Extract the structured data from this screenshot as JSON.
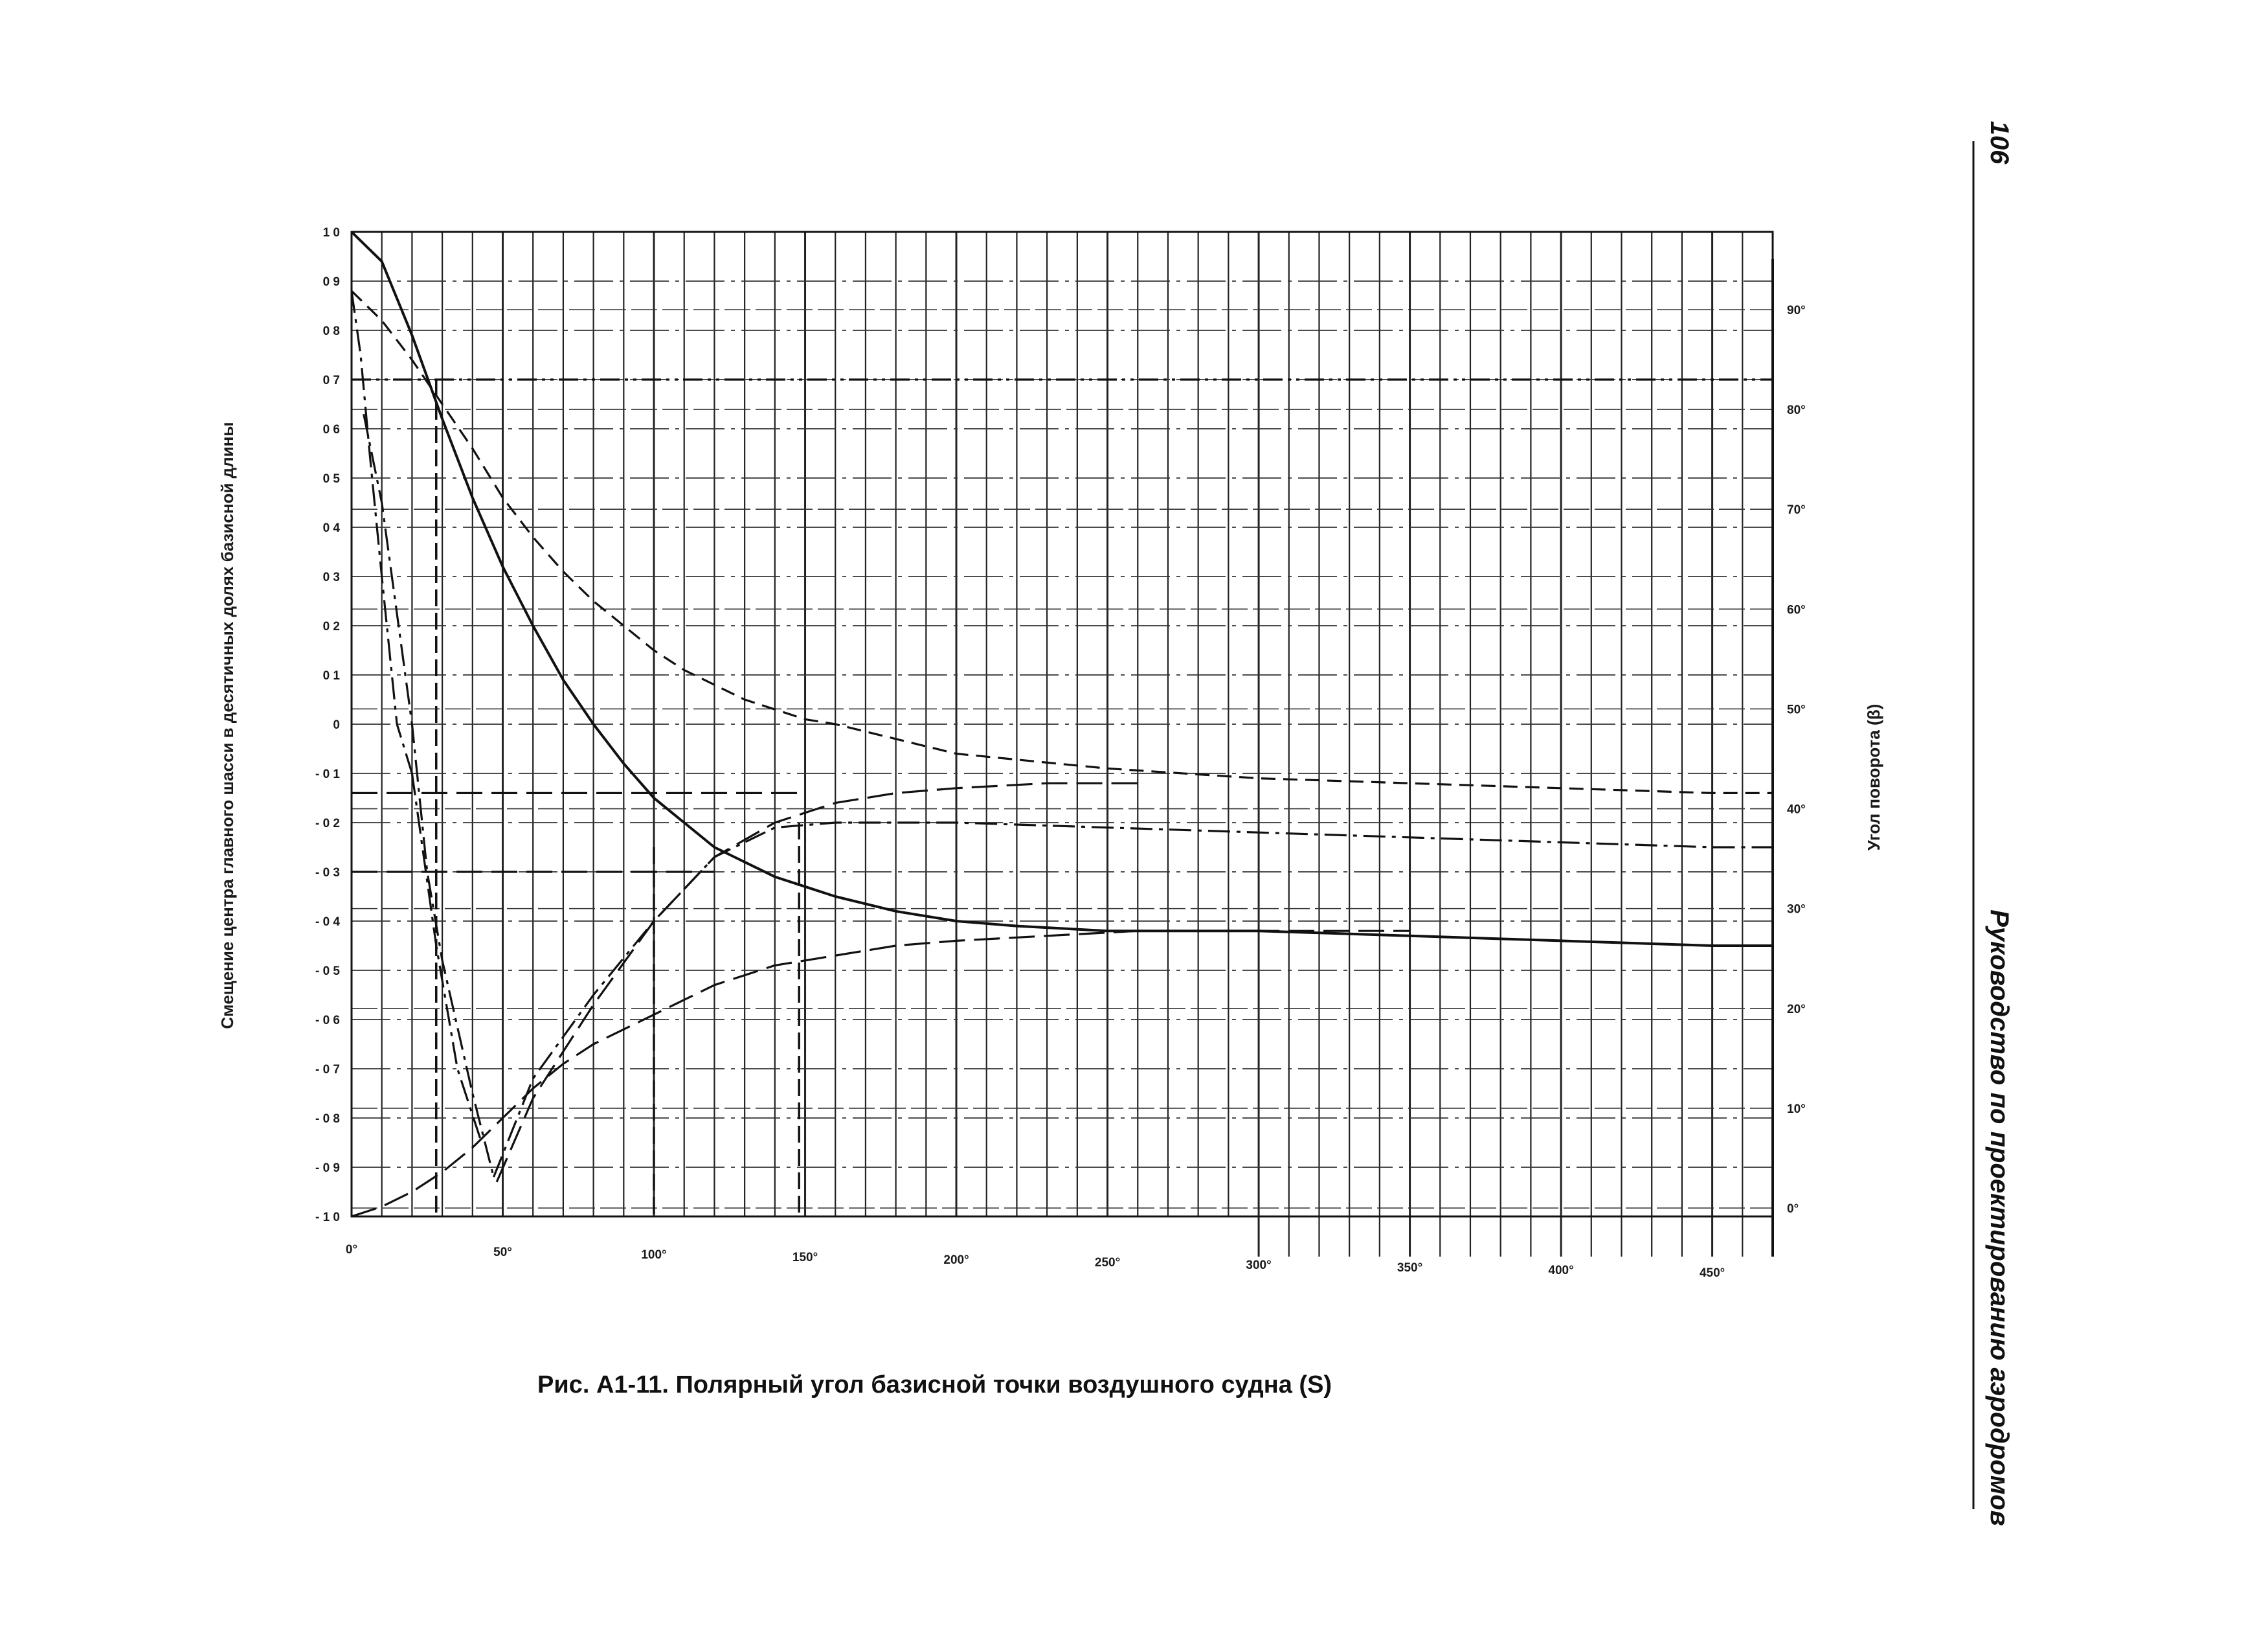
{
  "page": {
    "number": "106",
    "running_title": "Руководство по проектированию аэродромов"
  },
  "figure": {
    "caption": "Рис. А1-11. Полярный угол базисной точки воздушного судна (S)"
  },
  "chart_data": {
    "type": "line",
    "grid": true,
    "xlabel": "",
    "xlim": [
      0,
      470
    ],
    "x_ticks": [
      0,
      50,
      100,
      150,
      200,
      250,
      300,
      350,
      400,
      450
    ],
    "x_tick_labels": [
      "0°",
      "50°",
      "100°",
      "150°",
      "200°",
      "250°",
      "300°",
      "350°",
      "400°",
      "450°"
    ],
    "ylabel_left": "Смещение центра главного шасси в десятичных долях базисной длины",
    "ylim_left": [
      -1.0,
      1.0
    ],
    "y_ticks_left": [
      1.0,
      0.9,
      0.8,
      0.7,
      0.6,
      0.5,
      0.4,
      0.3,
      0.2,
      0.1,
      0,
      -0.1,
      -0.2,
      -0.3,
      -0.4,
      -0.5,
      -0.6,
      -0.7,
      -0.8,
      -0.9,
      -1.0
    ],
    "y_tick_labels_left": [
      "1 0",
      "0 9",
      "0 8",
      "0 7",
      "0 6",
      "0 5",
      "0 4",
      "0 3",
      "0 2",
      "0 1",
      "0",
      "- 0 1",
      "- 0 2",
      "- 0 3",
      "- 0 4",
      "- 0 5",
      "- 0 6",
      "- 0 7",
      "- 0 8",
      "- 0 9",
      "- 1 0"
    ],
    "ylabel_right": "Угол поворота (β)",
    "ylim_right": [
      -5,
      95
    ],
    "y_ticks_right": [
      0,
      10,
      20,
      30,
      40,
      50,
      60,
      70,
      80,
      90
    ],
    "y_tick_labels_right": [
      "0°",
      "10°",
      "20°",
      "30°",
      "40°",
      "50°",
      "60°",
      "70°",
      "80°",
      "90°"
    ],
    "series": [
      {
        "style": "solid",
        "color": "#111111",
        "x": [
          0,
          10,
          20,
          30,
          40,
          50,
          60,
          70,
          80,
          90,
          100,
          110,
          120,
          130,
          140,
          150,
          160,
          180,
          200,
          220,
          250,
          280,
          300,
          350,
          400,
          450,
          470
        ],
        "y": [
          1.0,
          0.94,
          0.79,
          0.62,
          0.46,
          0.32,
          0.2,
          0.09,
          0.0,
          -0.08,
          -0.15,
          -0.2,
          -0.25,
          -0.28,
          -0.31,
          -0.33,
          -0.35,
          -0.38,
          -0.4,
          -0.41,
          -0.42,
          -0.42,
          -0.42,
          -0.43,
          -0.44,
          -0.45,
          -0.45
        ]
      },
      {
        "style": "dashed",
        "color": "#111111",
        "x": [
          0,
          10,
          20,
          30,
          40,
          50,
          60,
          70,
          80,
          90,
          100,
          110,
          120,
          130,
          140,
          150,
          160,
          180,
          200,
          250,
          300,
          350,
          400,
          450,
          470
        ],
        "y": [
          0.88,
          0.82,
          0.74,
          0.65,
          0.56,
          0.46,
          0.38,
          0.31,
          0.25,
          0.2,
          0.15,
          0.11,
          0.08,
          0.05,
          0.03,
          0.01,
          0.0,
          -0.03,
          -0.06,
          -0.09,
          -0.11,
          -0.12,
          -0.13,
          -0.14,
          -0.14
        ]
      },
      {
        "style": "long-dash",
        "color": "#111111",
        "x": [
          0,
          10,
          20,
          30,
          40,
          50,
          60,
          70,
          80,
          90,
          100,
          110,
          120,
          130,
          140,
          150,
          180,
          200,
          230,
          260,
          300,
          350
        ],
        "y": [
          -1.0,
          -0.98,
          -0.95,
          -0.91,
          -0.86,
          -0.8,
          -0.74,
          -0.69,
          -0.65,
          -0.62,
          -0.59,
          -0.56,
          -0.53,
          -0.51,
          -0.49,
          -0.48,
          -0.45,
          -0.44,
          -0.43,
          -0.42,
          -0.42,
          -0.42
        ]
      },
      {
        "style": "dash-dot",
        "color": "#111111",
        "x": [
          4,
          10,
          20,
          25,
          30,
          40,
          47
        ],
        "y": [
          0.63,
          0.45,
          0.0,
          -0.3,
          -0.48,
          -0.75,
          -0.92
        ]
      },
      {
        "style": "dash-dot",
        "color": "#111111",
        "x": [
          47,
          60,
          80,
          100,
          120,
          140,
          160,
          200,
          250,
          300,
          350,
          400,
          450,
          470
        ],
        "y": [
          -0.92,
          -0.72,
          -0.55,
          -0.4,
          -0.27,
          -0.21,
          -0.2,
          -0.2,
          -0.21,
          -0.22,
          -0.23,
          -0.24,
          -0.25,
          -0.25
        ]
      },
      {
        "style": "dash-dot",
        "color": "#111111",
        "x": [
          0,
          3,
          6,
          10,
          15,
          20
        ],
        "y": [
          0.88,
          0.75,
          0.55,
          0.3,
          0.0,
          -0.1
        ]
      },
      {
        "style": "dash-dot",
        "color": "#111111",
        "x": [
          20,
          28,
          35,
          43
        ],
        "y": [
          -0.1,
          -0.45,
          -0.7,
          -0.85
        ]
      },
      {
        "style": "long-dash",
        "color": "#111111",
        "x": [
          48,
          60,
          80,
          100,
          120,
          140,
          160,
          180,
          200,
          230,
          260
        ],
        "y": [
          -0.93,
          -0.76,
          -0.57,
          -0.4,
          -0.27,
          -0.2,
          -0.16,
          -0.14,
          -0.13,
          -0.12,
          -0.12
        ]
      },
      {
        "style": "dash-dot-dot",
        "color": "#111111",
        "x": [
          0,
          470
        ],
        "y": [
          0.7,
          0.7
        ]
      },
      {
        "style": "long-dash",
        "color": "#111111",
        "x": [
          0,
          120,
          150
        ],
        "y": [
          -0.14,
          -0.14,
          -0.14
        ]
      },
      {
        "style": "long-dash",
        "color": "#111111",
        "x": [
          0,
          120
        ],
        "y": [
          -0.3,
          -0.3
        ]
      }
    ],
    "annotations": [
      {
        "type": "vertical-dashed",
        "x": 28,
        "y_from": 0.7,
        "y_to": -1.0
      },
      {
        "type": "vertical-dashed",
        "x": 100,
        "y_from": -0.25,
        "y_to": -1.0
      },
      {
        "type": "vertical-dashed",
        "x": 148,
        "y_from": -0.2,
        "y_to": -1.0
      }
    ]
  }
}
